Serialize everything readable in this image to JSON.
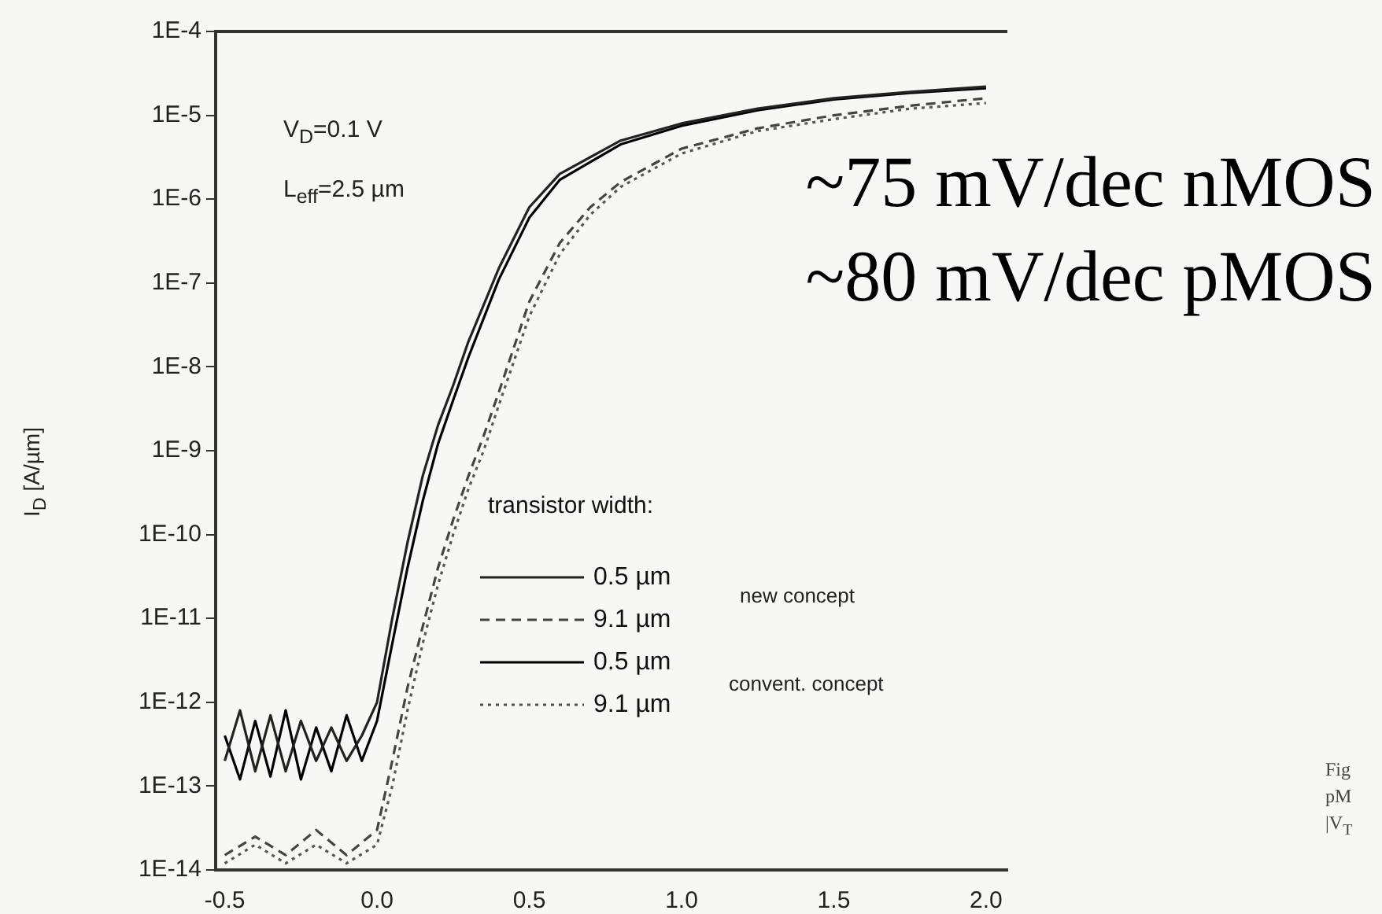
{
  "chart_data": {
    "type": "line",
    "ylabel": "I$_{D}$ [A/µm]",
    "legend_title": "transistor width:",
    "legend": "bottom",
    "log": "y",
    "grid": false,
    "marker": "none",
    "xlim": [
      -0.53,
      2.07
    ],
    "xticks": [
      {
        "value": -0.5,
        "label": "-0.5"
      },
      {
        "value": 0,
        "label": "0.0"
      },
      {
        "value": 0.5,
        "label": "0.5"
      },
      {
        "value": 1,
        "label": "1.0"
      },
      {
        "value": 1.5,
        "label": "1.5"
      },
      {
        "value": 2,
        "label": "2.0"
      }
    ],
    "ylim": [
      1e-14,
      0.0001
    ],
    "yticks": [
      {
        "value": 1e-14,
        "label": "1E-14"
      },
      {
        "value": 1e-13,
        "label": "1E-13"
      },
      {
        "value": 1e-12,
        "label": "1E-12"
      },
      {
        "value": 1e-11,
        "label": "1E-11"
      },
      {
        "value": 1e-10,
        "label": "1E-10"
      },
      {
        "value": 1e-09,
        "label": "1E-9"
      },
      {
        "value": 1e-08,
        "label": "1E-8"
      },
      {
        "value": 1e-07,
        "label": "1E-7"
      },
      {
        "value": 1e-06,
        "label": "1E-6"
      },
      {
        "value": 1e-05,
        "label": "1E-5"
      },
      {
        "value": 0.0001,
        "label": "1E-4"
      }
    ],
    "annotations": [
      "V$_{D}$=0.1 V",
      "L$_{eff}$=2.5 µm",
      "~75 mV/dec nMOS",
      "~80 mV/dec pMOS",
      "new concept",
      "convent. concept",
      "Fig",
      "pM",
      "|V$_{T}$"
    ],
    "series": [
      {
        "name": "0.5 µm",
        "color": "#222222",
        "line_style": "solid",
        "x": [
          -0.5,
          -0.45,
          -0.4,
          -0.35,
          -0.3,
          -0.25,
          -0.2,
          -0.15,
          -0.1,
          -0.05,
          0,
          0.05,
          0.1,
          0.15,
          0.2,
          0.25,
          0.3,
          0.4,
          0.5,
          0.6,
          0.8,
          1.0,
          1.25,
          1.5,
          1.75,
          2.0
        ],
        "values": [
          2e-13,
          8e-13,
          1.5e-13,
          7e-13,
          1.5e-13,
          6e-13,
          2e-13,
          5e-13,
          2e-13,
          4e-13,
          1e-12,
          1e-11,
          8e-11,
          5e-10,
          2e-09,
          6e-09,
          2e-08,
          1.5e-07,
          8e-07,
          2e-06,
          5e-06,
          8e-06,
          1.2e-05,
          1.6e-05,
          1.9e-05,
          2.2e-05
        ]
      },
      {
        "name": "9.1 µm",
        "color": "#444444",
        "line_style": "dashed",
        "x": [
          -0.5,
          -0.4,
          -0.3,
          -0.2,
          -0.1,
          0,
          0.05,
          0.1,
          0.15,
          0.2,
          0.25,
          0.3,
          0.35,
          0.4,
          0.5,
          0.6,
          0.7,
          0.8,
          1.0,
          1.25,
          1.5,
          1.75,
          2.0
        ],
        "values": [
          1.5e-14,
          2.5e-14,
          1.5e-14,
          3e-14,
          1.5e-14,
          3e-14,
          2e-13,
          1.5e-12,
          8e-12,
          4e-11,
          1.5e-10,
          5e-10,
          1.5e-09,
          5e-09,
          6e-08,
          3e-07,
          8e-07,
          1.6e-06,
          4e-06,
          7e-06,
          1e-05,
          1.3e-05,
          1.6e-05
        ]
      },
      {
        "name": "0.5 µm",
        "color": "#000000",
        "line_style": "solid",
        "x": [
          -0.5,
          -0.45,
          -0.4,
          -0.35,
          -0.3,
          -0.25,
          -0.2,
          -0.15,
          -0.1,
          -0.05,
          0,
          0.05,
          0.1,
          0.15,
          0.2,
          0.25,
          0.3,
          0.4,
          0.5,
          0.6,
          0.8,
          1.0,
          1.25,
          1.5,
          1.75,
          2.0
        ],
        "values": [
          4e-13,
          1.2e-13,
          6e-13,
          1.3e-13,
          8e-13,
          1.2e-13,
          5e-13,
          1.5e-13,
          7e-13,
          2e-13,
          6e-13,
          5e-12,
          4e-11,
          2.5e-10,
          1.2e-09,
          4e-09,
          1.3e-08,
          1.1e-07,
          6e-07,
          1.7e-06,
          4.5e-06,
          7.5e-06,
          1.15e-05,
          1.55e-05,
          1.85e-05,
          2.1e-05
        ]
      },
      {
        "name": "9.1 µm",
        "color": "#555555",
        "line_style": "dotted",
        "x": [
          -0.5,
          -0.4,
          -0.3,
          -0.2,
          -0.1,
          0,
          0.05,
          0.1,
          0.15,
          0.2,
          0.25,
          0.3,
          0.35,
          0.4,
          0.5,
          0.6,
          0.7,
          0.8,
          1.0,
          1.25,
          1.5,
          1.75,
          2.0
        ],
        "values": [
          1.2e-14,
          2e-14,
          1.2e-14,
          2e-14,
          1.2e-14,
          2e-14,
          1e-13,
          8e-13,
          5e-12,
          2.5e-11,
          1e-10,
          3.5e-10,
          1e-09,
          3.5e-09,
          4e-08,
          2.2e-07,
          6.5e-07,
          1.4e-06,
          3.5e-06,
          6.5e-06,
          9e-06,
          1.2e-05,
          1.4e-05
        ]
      }
    ]
  }
}
